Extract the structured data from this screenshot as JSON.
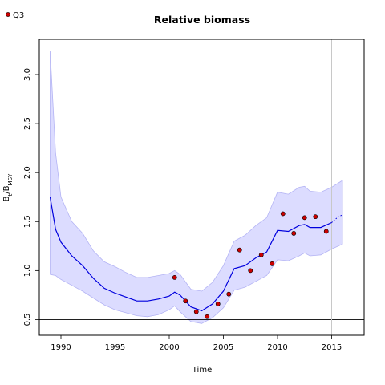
{
  "chart_data": {
    "type": "line",
    "title": "Relative biomass",
    "xlabel": "Time",
    "ylabel": {
      "main": "B",
      "sub1": "t",
      "slash": "/B",
      "sub2": "MSY"
    },
    "xlim": [
      1988,
      2018
    ],
    "ylim": [
      0.34,
      3.36
    ],
    "xticks": [
      1990,
      1995,
      2000,
      2005,
      2010,
      2015
    ],
    "yticks": [
      0.5,
      1.0,
      1.5,
      2.0,
      2.5,
      3.0
    ],
    "xtick_labels": [
      "1990",
      "1995",
      "2000",
      "2005",
      "2010",
      "2015"
    ],
    "ytick_labels": [
      "0.5",
      "1.0",
      "1.5",
      "2.0",
      "2.5",
      "3.0"
    ],
    "reference_hline": 0.5,
    "reference_vline": 2015,
    "legend": {
      "label": "Q3",
      "placement": "top-left"
    },
    "colors": {
      "line": "#0000dd",
      "band": "#dcdcff",
      "band_edge": "#b4b4f4",
      "point_fill": "#cc0000",
      "vline": "#c8c8c8"
    },
    "median": {
      "x": [
        1989,
        1989.5,
        1990,
        1991,
        1992,
        1993,
        1994,
        1995,
        1996,
        1997,
        1998,
        1999,
        2000,
        2000.5,
        2001,
        2002,
        2003,
        2004,
        2005,
        2006,
        2007,
        2008,
        2009,
        2010,
        2011,
        2012,
        2012.5,
        2013,
        2014,
        2015
      ],
      "y": [
        1.75,
        1.42,
        1.29,
        1.15,
        1.05,
        0.92,
        0.82,
        0.77,
        0.73,
        0.69,
        0.69,
        0.71,
        0.74,
        0.78,
        0.75,
        0.63,
        0.59,
        0.66,
        0.79,
        1.02,
        1.05,
        1.13,
        1.19,
        1.41,
        1.4,
        1.46,
        1.47,
        1.44,
        1.44,
        1.49
      ]
    },
    "upper": {
      "x": [
        1989,
        1989.5,
        1990,
        1991,
        1992,
        1993,
        1994,
        1995,
        1996,
        1997,
        1998,
        1999,
        2000,
        2000.5,
        2001,
        2002,
        2003,
        2004,
        2005,
        2006,
        2007,
        2008,
        2009,
        2010,
        2011,
        2012,
        2012.5,
        2013,
        2014,
        2015,
        2016
      ],
      "y": [
        3.24,
        2.2,
        1.75,
        1.5,
        1.38,
        1.2,
        1.09,
        1.04,
        0.98,
        0.93,
        0.93,
        0.95,
        0.97,
        1.0,
        0.96,
        0.81,
        0.79,
        0.88,
        1.05,
        1.3,
        1.36,
        1.46,
        1.54,
        1.8,
        1.78,
        1.85,
        1.86,
        1.81,
        1.8,
        1.85,
        1.92
      ]
    },
    "lower": {
      "x": [
        1989,
        1989.5,
        1990,
        1991,
        1992,
        1993,
        1994,
        1995,
        1996,
        1997,
        1998,
        1999,
        2000,
        2000.5,
        2001,
        2002,
        2003,
        2004,
        2005,
        2006,
        2007,
        2008,
        2009,
        2010,
        2011,
        2012,
        2012.5,
        2013,
        2014,
        2015,
        2016
      ],
      "y": [
        0.96,
        0.95,
        0.91,
        0.85,
        0.79,
        0.72,
        0.65,
        0.6,
        0.57,
        0.54,
        0.53,
        0.55,
        0.6,
        0.64,
        0.58,
        0.48,
        0.46,
        0.52,
        0.62,
        0.8,
        0.83,
        0.89,
        0.95,
        1.11,
        1.1,
        1.15,
        1.18,
        1.15,
        1.16,
        1.22,
        1.27
      ]
    },
    "projection": {
      "x": [
        2015,
        2015.5,
        2016
      ],
      "y": [
        1.49,
        1.54,
        1.57
      ]
    },
    "points": {
      "x": [
        2000.5,
        2001.5,
        2002.5,
        2003.5,
        2004.5,
        2005.5,
        2006.5,
        2007.5,
        2008.5,
        2009.5,
        2010.5,
        2011.5,
        2012.5,
        2013.5,
        2014.5
      ],
      "y": [
        0.93,
        0.69,
        0.58,
        0.53,
        0.66,
        0.76,
        1.21,
        1.0,
        1.16,
        1.07,
        1.58,
        1.38,
        1.54,
        1.55,
        1.4
      ]
    }
  }
}
